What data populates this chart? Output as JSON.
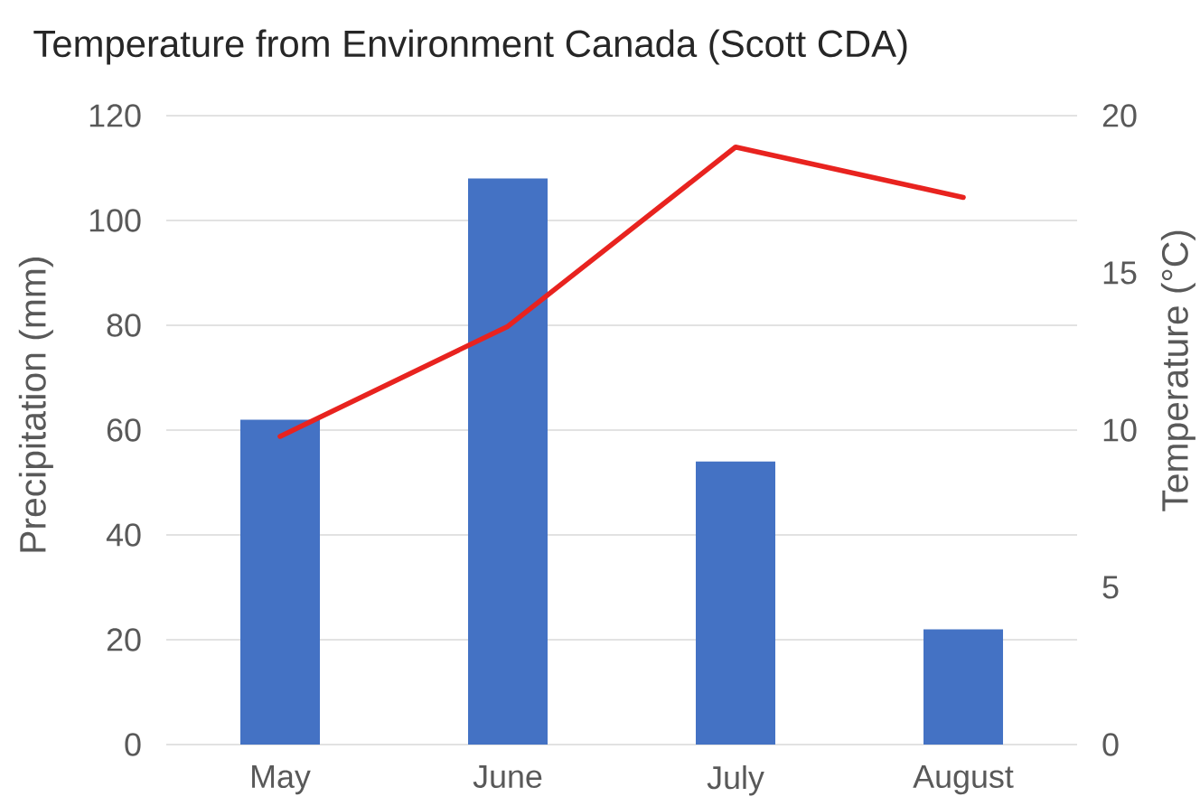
{
  "chart_data": {
    "type": "bar",
    "title": "Temperature from Environment Canada (Scott CDA)",
    "ylabel": "Precipitation (mm)",
    "y2label": "Temperature (°C)",
    "categories": [
      "May",
      "June",
      "July",
      "August"
    ],
    "series": [
      {
        "color": "#4472c4",
        "values": [
          62,
          108,
          54,
          22
        ]
      },
      {
        "type": "line",
        "axis": "y2",
        "color": "#e8231f",
        "values": [
          9.8,
          13.3,
          19.0,
          17.4
        ]
      }
    ],
    "ylim": [
      0,
      120
    ],
    "yticks": [
      0,
      20,
      40,
      60,
      80,
      100,
      120
    ],
    "y2lim": [
      0,
      20
    ],
    "y2ticks": [
      0,
      5,
      10,
      15,
      20
    ],
    "grid": "y"
  }
}
